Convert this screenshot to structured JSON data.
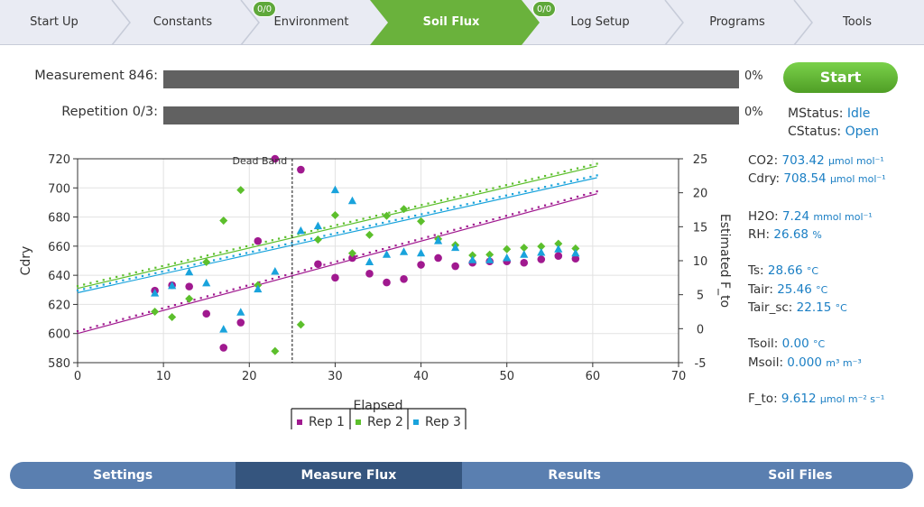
{
  "nav": {
    "items": [
      {
        "label": "Start Up",
        "badge": null,
        "active": false
      },
      {
        "label": "Constants",
        "badge": null,
        "active": false
      },
      {
        "label": "Environment",
        "badge": "0/0",
        "active": false
      },
      {
        "label": "Soil Flux",
        "badge": null,
        "active": true
      },
      {
        "label": "Log Setup",
        "badge": "0/0",
        "active": false
      },
      {
        "label": "Programs",
        "badge": null,
        "active": false
      },
      {
        "label": "Tools",
        "badge": null,
        "active": false
      }
    ]
  },
  "progress": {
    "measurement": {
      "label": "Measurement 846:",
      "percent_text": "0%",
      "value": 0
    },
    "repetition": {
      "label": "Repetition 0/3:",
      "percent_text": "0%",
      "value": 0
    }
  },
  "start_label": "Start",
  "status": {
    "mstatus_label": "MStatus:",
    "mstatus": "Idle",
    "cstatus_label": "CStatus:",
    "cstatus": "Open"
  },
  "readings": [
    {
      "label": "CO2:",
      "value": "703.42",
      "unit": "µmol mol⁻¹"
    },
    {
      "label": "Cdry:",
      "value": "708.54",
      "unit": "µmol mol⁻¹"
    },
    {
      "label": "H2O:",
      "value": "7.24",
      "unit": "mmol mol⁻¹"
    },
    {
      "label": "RH:",
      "value": "26.68",
      "unit": "%"
    },
    {
      "label": "Ts:",
      "value": "28.66",
      "unit": "°C"
    },
    {
      "label": "Tair:",
      "value": "25.46",
      "unit": "°C"
    },
    {
      "label": "Tair_sc:",
      "value": "22.15",
      "unit": "°C"
    },
    {
      "label": "Tsoil:",
      "value": "0.00",
      "unit": "°C"
    },
    {
      "label": "Msoil:",
      "value": "0.000",
      "unit": "m³ m⁻³"
    },
    {
      "label": "F_to:",
      "value": "9.612",
      "unit": "µmol m⁻² s⁻¹"
    }
  ],
  "colors": {
    "rep1": "#a0198f",
    "rep2": "#5cbf2c",
    "rep3": "#19a3dc",
    "accent": "#6ab23c",
    "value_text": "#1b7fc4"
  },
  "chart_data": {
    "type": "scatter",
    "xlabel": "Elapsed",
    "ylabel": "Cdry",
    "y2label": "Estimated F_to",
    "xlim": [
      0,
      70
    ],
    "ylim": [
      580,
      720
    ],
    "y2lim": [
      -5,
      25
    ],
    "xticks": [
      0,
      10,
      20,
      30,
      40,
      50,
      60,
      70
    ],
    "yticks": [
      580,
      600,
      620,
      640,
      660,
      680,
      700,
      720
    ],
    "y2ticks": [
      -5,
      0,
      5,
      10,
      15,
      20,
      25
    ],
    "grid": true,
    "dead_band": {
      "x": 25,
      "label": "Dead Band"
    },
    "legend": [
      "Rep 1",
      "Rep 2",
      "Rep 3"
    ],
    "series": [
      {
        "name": "Rep 1",
        "line": [
          [
            0,
            600
          ],
          [
            60.5,
            696
          ]
        ],
        "points": [
          [
            9,
            5.6
          ],
          [
            11,
            6.4
          ],
          [
            13,
            6.2
          ],
          [
            15,
            2.2
          ],
          [
            17,
            -2.8
          ],
          [
            19,
            0.9
          ],
          [
            21,
            12.9
          ],
          [
            23,
            25
          ],
          [
            26,
            23.4
          ],
          [
            28,
            9.5
          ],
          [
            30,
            7.5
          ],
          [
            32,
            10.4
          ],
          [
            34,
            8.1
          ],
          [
            36,
            6.8
          ],
          [
            38,
            7.3
          ],
          [
            40,
            9.4
          ],
          [
            42,
            10.4
          ],
          [
            44,
            9.2
          ],
          [
            46,
            9.7
          ],
          [
            48,
            9.9
          ],
          [
            50,
            9.9
          ],
          [
            52,
            9.7
          ],
          [
            54,
            10.2
          ],
          [
            56,
            10.7
          ],
          [
            58,
            10.3
          ]
        ]
      },
      {
        "name": "Rep 2",
        "line": [
          [
            0,
            631
          ],
          [
            60.5,
            715
          ]
        ],
        "points": [
          [
            9,
            2.5
          ],
          [
            11,
            1.7
          ],
          [
            13,
            4.4
          ],
          [
            15,
            9.8
          ],
          [
            17,
            15.9
          ],
          [
            19,
            20.4
          ],
          [
            21,
            6.4
          ],
          [
            23,
            -3.3
          ],
          [
            26,
            0.6
          ],
          [
            28,
            13.1
          ],
          [
            30,
            16.7
          ],
          [
            32,
            11.1
          ],
          [
            34,
            13.8
          ],
          [
            36,
            16.6
          ],
          [
            38,
            17.6
          ],
          [
            40,
            15.8
          ],
          [
            42,
            13.2
          ],
          [
            44,
            12.3
          ],
          [
            46,
            10.8
          ],
          [
            48,
            10.9
          ],
          [
            50,
            11.7
          ],
          [
            52,
            11.9
          ],
          [
            54,
            12.1
          ],
          [
            56,
            12.5
          ],
          [
            58,
            11.8
          ]
        ]
      },
      {
        "name": "Rep 3",
        "line": [
          [
            0,
            628
          ],
          [
            60.5,
            707
          ]
        ],
        "points": [
          [
            9,
            5.2
          ],
          [
            11,
            6.3
          ],
          [
            13,
            8.3
          ],
          [
            15,
            6.7
          ],
          [
            17,
            -0.1
          ],
          [
            19,
            2.4
          ],
          [
            21,
            5.8
          ],
          [
            23,
            8.4
          ],
          [
            26,
            14.4
          ],
          [
            28,
            15.1
          ],
          [
            30,
            20.4
          ],
          [
            32,
            18.8
          ],
          [
            34,
            9.8
          ],
          [
            36,
            10.9
          ],
          [
            38,
            11.3
          ],
          [
            40,
            11.1
          ],
          [
            42,
            12.9
          ],
          [
            44,
            11.9
          ],
          [
            46,
            10.1
          ],
          [
            48,
            10.1
          ],
          [
            50,
            10.4
          ],
          [
            52,
            10.9
          ],
          [
            54,
            11.2
          ],
          [
            56,
            11.7
          ],
          [
            58,
            11.1
          ]
        ]
      }
    ]
  },
  "tabs": [
    {
      "label": "Settings",
      "active": false
    },
    {
      "label": "Measure Flux",
      "active": true
    },
    {
      "label": "Results",
      "active": false
    },
    {
      "label": "Soil Files",
      "active": false
    }
  ]
}
